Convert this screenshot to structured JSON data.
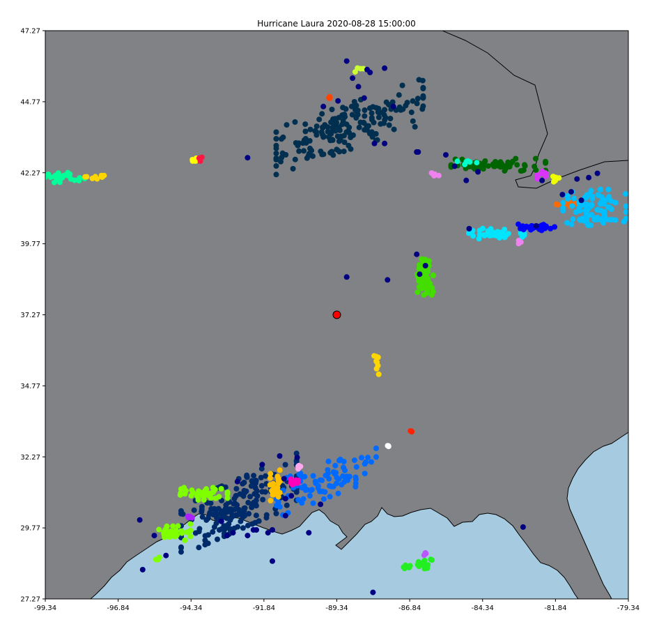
{
  "chart_data": {
    "type": "scatter",
    "title": "Hurricane Laura 2020-08-28 15:00:00",
    "xlabel": "",
    "ylabel": "",
    "xlim": [
      -99.34,
      -79.34
    ],
    "ylim": [
      27.27,
      47.27
    ],
    "xticks": [
      "-99.34",
      "-96.84",
      "-94.34",
      "-91.84",
      "-89.34",
      "-86.84",
      "-84.34",
      "-81.84",
      "-79.34"
    ],
    "yticks": [
      "27.27",
      "29.77",
      "32.27",
      "34.77",
      "37.27",
      "39.77",
      "42.27",
      "44.77",
      "47.27"
    ],
    "grid": false,
    "legend": "none",
    "colors": {
      "land": "#808285",
      "water": "#a6cadf",
      "coastline": "#000000",
      "storm_center": "#ff0000"
    },
    "storm_center": {
      "x": -89.34,
      "y": 37.27
    },
    "clusters": [
      {
        "color": "#002f4f",
        "x": -88.9,
        "y": 43.9,
        "sx": 1.4,
        "sy": 0.45,
        "n": 180,
        "slope": 0.35
      },
      {
        "color": "#00ff99",
        "x": -98.8,
        "y": 42.1,
        "sx": 0.45,
        "sy": 0.1,
        "n": 30
      },
      {
        "color": "#ffd700",
        "x": -97.8,
        "y": 42.15,
        "sx": 0.35,
        "sy": 0.06,
        "n": 8
      },
      {
        "color": "#ffff00",
        "x": -94.3,
        "y": 42.7,
        "sx": 0.1,
        "sy": 0.06,
        "n": 5
      },
      {
        "color": "#ff1744",
        "x": -94.0,
        "y": 42.75,
        "sx": 0.04,
        "sy": 0.04,
        "n": 3
      },
      {
        "color": "#006400",
        "x": -83.8,
        "y": 42.55,
        "sx": 0.9,
        "sy": 0.12,
        "n": 60
      },
      {
        "color": "#00ffcc",
        "x": -84.9,
        "y": 42.65,
        "sx": 0.2,
        "sy": 0.05,
        "n": 6
      },
      {
        "color": "#ee82ee",
        "x": -86.0,
        "y": 42.2,
        "sx": 0.15,
        "sy": 0.05,
        "n": 5
      },
      {
        "color": "#dd33ff",
        "x": -82.3,
        "y": 42.2,
        "sx": 0.1,
        "sy": 0.08,
        "n": 6
      },
      {
        "color": "#eeff00",
        "x": -81.9,
        "y": 42.05,
        "sx": 0.12,
        "sy": 0.06,
        "n": 6
      },
      {
        "color": "#ff6a00",
        "x": -81.45,
        "y": 41.2,
        "sx": 0.2,
        "sy": 0.06,
        "n": 12
      },
      {
        "color": "#00bfff",
        "x": -80.5,
        "y": 41.05,
        "sx": 0.6,
        "sy": 0.35,
        "n": 90
      },
      {
        "color": "#00e5ff",
        "x": -83.9,
        "y": 40.13,
        "sx": 0.55,
        "sy": 0.1,
        "n": 35
      },
      {
        "color": "#0000ff",
        "x": -82.5,
        "y": 40.35,
        "sx": 0.35,
        "sy": 0.06,
        "n": 30
      },
      {
        "color": "#ee82ee",
        "x": -83.1,
        "y": 39.85,
        "sx": 0.04,
        "sy": 0.04,
        "n": 3
      },
      {
        "color": "#44dd00",
        "x": -86.3,
        "y": 38.6,
        "sx": 0.15,
        "sy": 0.35,
        "n": 60
      },
      {
        "color": "#ffd700",
        "x": -88.0,
        "y": 35.5,
        "sx": 0.07,
        "sy": 0.18,
        "n": 8
      },
      {
        "color": "#ff2200",
        "x": -86.8,
        "y": 33.15,
        "sx": 0.03,
        "sy": 0.03,
        "n": 3
      },
      {
        "color": "#ffffff",
        "x": -87.6,
        "y": 32.65,
        "sx": 0.06,
        "sy": 0.03,
        "n": 3
      },
      {
        "color": "#ff4400",
        "x": -89.6,
        "y": 44.9,
        "sx": 0.05,
        "sy": 0.03,
        "n": 3
      },
      {
        "color": "#ccff33",
        "x": -88.6,
        "y": 46.0,
        "sx": 0.15,
        "sy": 0.1,
        "n": 4
      },
      {
        "color": "#002b6b",
        "x": -92.7,
        "y": 30.6,
        "sx": 1.1,
        "sy": 0.5,
        "n": 200,
        "slope": 0.45
      },
      {
        "color": "#006aff",
        "x": -89.7,
        "y": 31.45,
        "sx": 0.95,
        "sy": 0.35,
        "n": 90,
        "slope": 0.4
      },
      {
        "color": "#7fff00",
        "x": -93.9,
        "y": 30.97,
        "sx": 0.45,
        "sy": 0.12,
        "n": 40
      },
      {
        "color": "#7fff00",
        "x": -94.9,
        "y": 29.6,
        "sx": 0.3,
        "sy": 0.17,
        "n": 30
      },
      {
        "color": "#7fff00",
        "x": -95.5,
        "y": 28.7,
        "sx": 0.05,
        "sy": 0.04,
        "n": 3
      },
      {
        "color": "#aa22ff",
        "x": -94.4,
        "y": 30.13,
        "sx": 0.07,
        "sy": 0.05,
        "n": 5
      },
      {
        "color": "#ffc000",
        "x": -91.45,
        "y": 31.27,
        "sx": 0.1,
        "sy": 0.3,
        "n": 25
      },
      {
        "color": "#ff00bb",
        "x": -90.85,
        "y": 31.43,
        "sx": 0.1,
        "sy": 0.1,
        "n": 15
      },
      {
        "color": "#ffaaee",
        "x": -90.6,
        "y": 31.9,
        "sx": 0.07,
        "sy": 0.04,
        "n": 4
      },
      {
        "color": "#22ee22",
        "x": -86.9,
        "y": 28.4,
        "sx": 0.1,
        "sy": 0.05,
        "n": 6
      },
      {
        "color": "#22ee22",
        "x": -86.3,
        "y": 28.5,
        "sx": 0.15,
        "sy": 0.09,
        "n": 12
      },
      {
        "color": "#bb55ff",
        "x": -86.3,
        "y": 28.85,
        "sx": 0.04,
        "sy": 0.04,
        "n": 3
      }
    ],
    "navy_points": {
      "color": "#000080",
      "x": [
        -89.0,
        -88.8,
        -88.2,
        -88.6,
        -88.3,
        -87.7,
        -87.4,
        -89.8,
        -89.3,
        -88.4,
        -88.05,
        -87.7,
        -92.4,
        -86.6,
        -86.55,
        -85.6,
        -85.3,
        -84.9,
        -84.8,
        -84.5,
        -82.3,
        -81.1,
        -81.3,
        -80.7,
        -80.4,
        -80.95,
        -81.6,
        -82.5,
        -86.3,
        -86.6,
        -86.5,
        -87.6,
        -89.0,
        -91.3,
        -90.7,
        -91.15,
        -91.9,
        -92.75,
        -93.3,
        -95.6,
        -95.2,
        -93.1,
        -92.9,
        -92.2,
        -91.7,
        -91.55,
        -90.9,
        -91.1,
        -91.1,
        -92.1,
        -92.4,
        -90.3,
        -89.9,
        -91.55,
        -96.0,
        -96.1,
        -82.95,
        -88.1
      ],
      "y": [
        46.2,
        45.6,
        45.8,
        45.3,
        45.9,
        45.95,
        44.6,
        44.6,
        44.8,
        44.9,
        43.3,
        43.3,
        42.8,
        43.0,
        43.0,
        42.9,
        42.5,
        42.0,
        40.3,
        42.3,
        42.0,
        42.05,
        41.6,
        42.1,
        42.25,
        41.3,
        41.5,
        40.4,
        39.0,
        39.4,
        38.7,
        38.5,
        38.6,
        32.3,
        32.25,
        31.5,
        32.0,
        31.4,
        30.0,
        29.5,
        28.8,
        29.5,
        29.6,
        29.7,
        29.6,
        29.7,
        30.9,
        30.8,
        30.2,
        29.7,
        29.5,
        29.6,
        30.6,
        28.6,
        28.3,
        30.05,
        29.8,
        27.5
      ]
    }
  }
}
